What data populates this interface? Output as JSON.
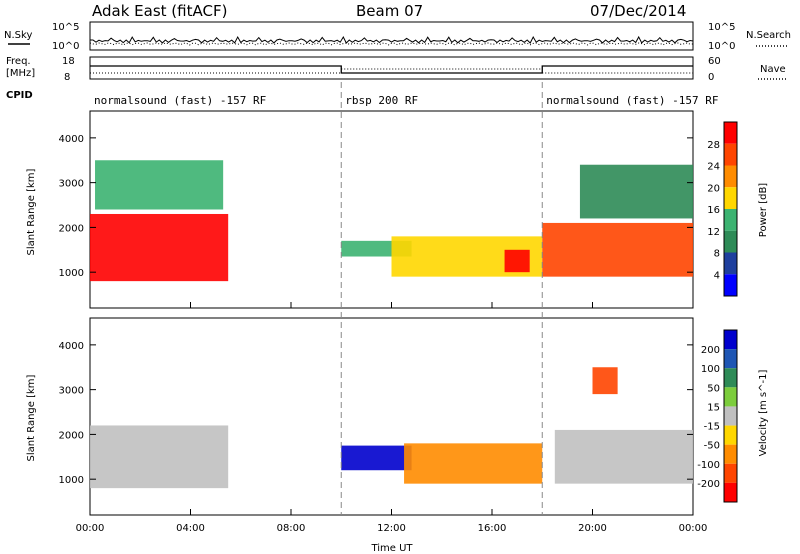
{
  "header": {
    "site": "Adak East (fitACF)",
    "beam": "Beam 07",
    "date": "07/Dec/2014"
  },
  "top_panels": {
    "nsky_label": "N.Sky",
    "nsearch_label": "N.Search",
    "noise_ticks_left": [
      "10^5",
      "10^0"
    ],
    "noise_ticks_right": [
      "10^5",
      "10^0"
    ],
    "freq_label_1": "Freq.",
    "freq_label_2": "[MHz]",
    "freq_ticks": [
      "18",
      "8"
    ],
    "nave_label": "Nave",
    "nave_ticks": [
      "60",
      "0"
    ],
    "cpid_label": "CPID",
    "cpid_segments": [
      {
        "text": "normalsound (fast) -157 RF",
        "start_hr": 0,
        "end_hr": 10
      },
      {
        "text": "rbsp 200 RF",
        "start_hr": 10,
        "end_hr": 18
      },
      {
        "text": "normalsound (fast) -157 RF",
        "start_hr": 18,
        "end_hr": 24
      }
    ]
  },
  "axes": {
    "x_ticks": [
      "00:00",
      "04:00",
      "08:00",
      "12:00",
      "16:00",
      "20:00",
      "00:00"
    ],
    "x_label": "Time UT",
    "y_label": "Slant Range [km]",
    "y_ticks": [
      "1000",
      "2000",
      "3000",
      "4000"
    ]
  },
  "power_colorbar": {
    "label": "Power [dB]",
    "ticks": [
      "28",
      "24",
      "20",
      "16",
      "12",
      "8",
      "4"
    ],
    "colors": [
      "#ff0000",
      "#ff4500",
      "#ff8c00",
      "#ffd700",
      "#3cb371",
      "#2e8b57",
      "#1e3f9e",
      "#0000ff"
    ]
  },
  "velocity_colorbar": {
    "label": "Velocity [m s^-1]",
    "ticks": [
      "200",
      "100",
      "50",
      "15",
      "-15",
      "-50",
      "-100",
      "-200"
    ],
    "colors": [
      "#0000cd",
      "#1e56b4",
      "#2e8b57",
      "#7ccd3c",
      "#c0c0c0",
      "#ffd700",
      "#ff8c00",
      "#ff4500",
      "#ff0000"
    ]
  },
  "chart_data": {
    "type": "heatmap",
    "x_range_hours": [
      0,
      24
    ],
    "y_range_km": [
      200,
      4600
    ],
    "power_regions": [
      {
        "start_hr": 0.0,
        "end_hr": 5.5,
        "range_min_km": 800,
        "range_max_km": 2300,
        "power_db": 28
      },
      {
        "start_hr": 0.2,
        "end_hr": 5.3,
        "range_min_km": 2400,
        "range_max_km": 3500,
        "power_db": 12
      },
      {
        "start_hr": 10.0,
        "end_hr": 12.8,
        "range_min_km": 1350,
        "range_max_km": 1700,
        "power_db": 12
      },
      {
        "start_hr": 12.0,
        "end_hr": 18.0,
        "range_min_km": 900,
        "range_max_km": 1800,
        "power_db": 16
      },
      {
        "start_hr": 16.5,
        "end_hr": 17.5,
        "range_min_km": 1000,
        "range_max_km": 1500,
        "power_db": 28
      },
      {
        "start_hr": 18.0,
        "end_hr": 24.0,
        "range_min_km": 900,
        "range_max_km": 2100,
        "power_db": 24
      },
      {
        "start_hr": 19.5,
        "end_hr": 24.0,
        "range_min_km": 2200,
        "range_max_km": 3400,
        "power_db": 8
      }
    ],
    "velocity_regions": [
      {
        "start_hr": 0.0,
        "end_hr": 5.5,
        "range_min_km": 800,
        "range_max_km": 2200,
        "velocity": 0
      },
      {
        "start_hr": 10.0,
        "end_hr": 12.8,
        "range_min_km": 1200,
        "range_max_km": 1750,
        "velocity": 200
      },
      {
        "start_hr": 12.5,
        "end_hr": 18.0,
        "range_min_km": 900,
        "range_max_km": 1800,
        "velocity": -100
      },
      {
        "start_hr": 18.5,
        "end_hr": 24.0,
        "range_min_km": 900,
        "range_max_km": 2100,
        "velocity": 0
      },
      {
        "start_hr": 20.0,
        "end_hr": 21.0,
        "range_min_km": 2900,
        "range_max_km": 3500,
        "velocity": -200
      }
    ]
  }
}
